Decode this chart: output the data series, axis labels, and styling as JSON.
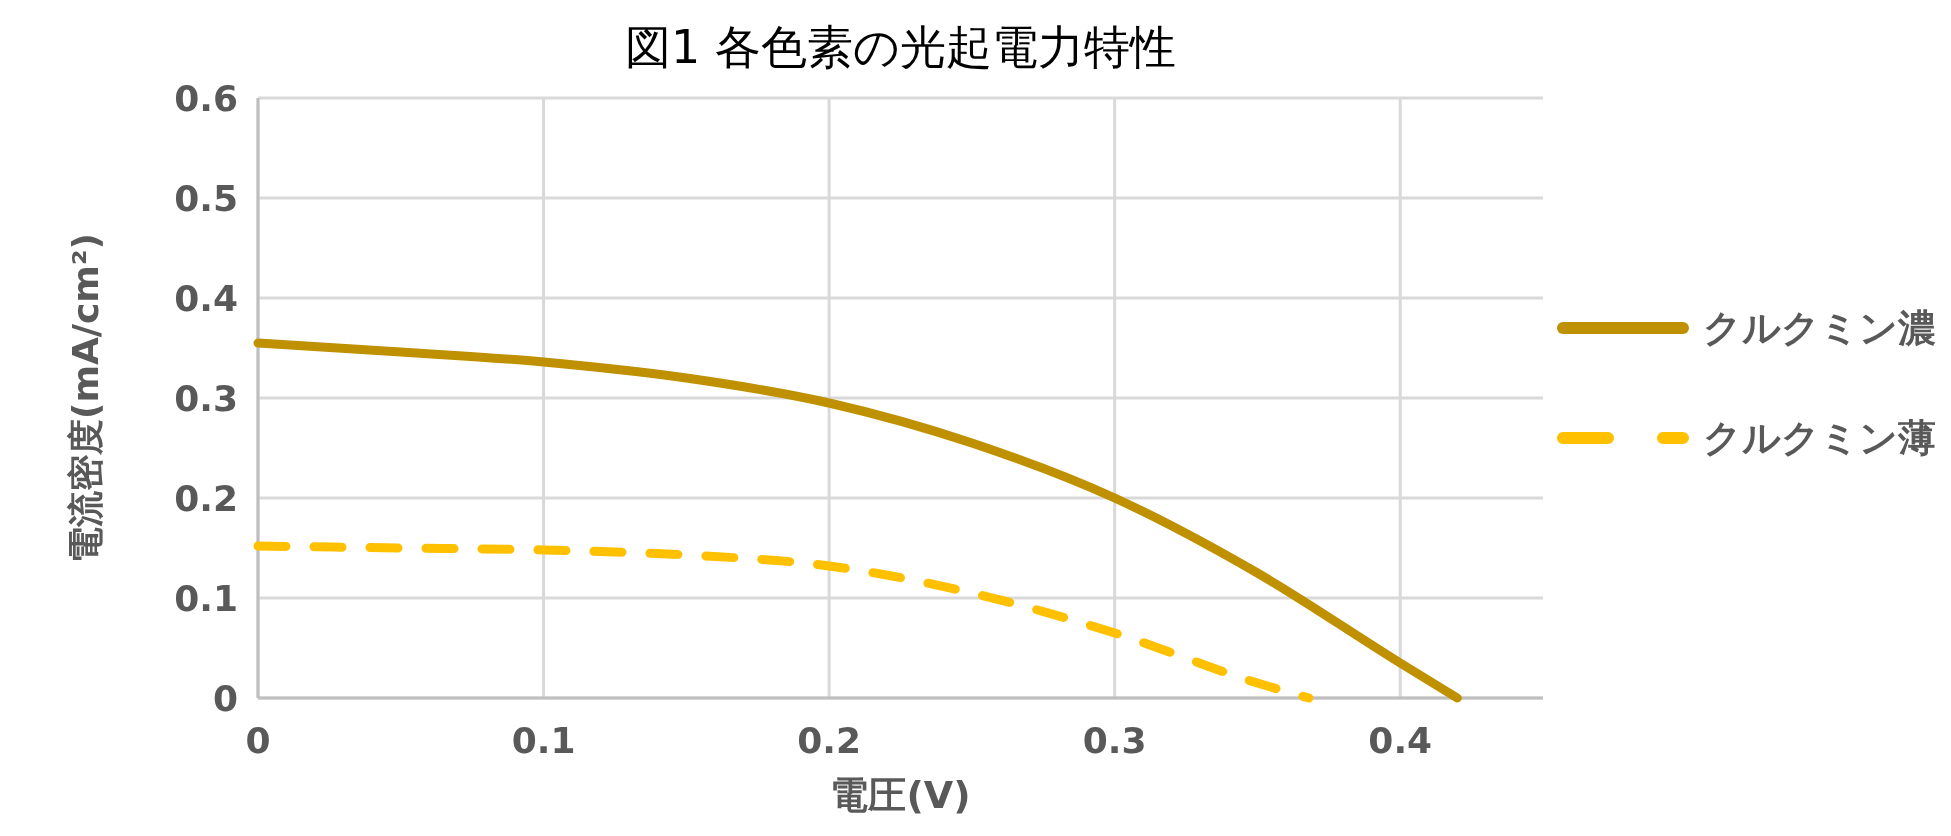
{
  "chart_data": {
    "type": "line",
    "title": "図1 各色素の光起電力特性",
    "xlabel": "電圧(V)",
    "ylabel": "電流密度(mA/cm²)",
    "x": [
      0,
      0.05,
      0.1,
      0.15,
      0.2,
      0.25,
      0.3,
      0.35,
      0.4,
      0.42
    ],
    "series": [
      {
        "name": "クルクミン濃",
        "color": "#bf9000",
        "line_style": "solid",
        "values": [
          0.355,
          0.346,
          0.336,
          0.32,
          0.295,
          0.255,
          0.2,
          0.125,
          0.035,
          0
        ]
      },
      {
        "name": "クルクミン薄",
        "color": "#ffc000",
        "line_style": "dashed",
        "x": [
          0,
          0.05,
          0.1,
          0.15,
          0.2,
          0.25,
          0.3,
          0.35,
          0.368
        ],
        "values": [
          0.152,
          0.15,
          0.148,
          0.143,
          0.132,
          0.105,
          0.065,
          0.015,
          0
        ]
      }
    ],
    "xlim": [
      0,
      0.45
    ],
    "xticks": [
      0,
      0.1,
      0.2,
      0.3,
      0.4
    ],
    "ylim": [
      0,
      0.6
    ],
    "yticks": [
      0,
      0.1,
      0.2,
      0.3,
      0.4,
      0.5,
      0.6
    ],
    "grid": true,
    "legend": "right",
    "marker": "none"
  }
}
